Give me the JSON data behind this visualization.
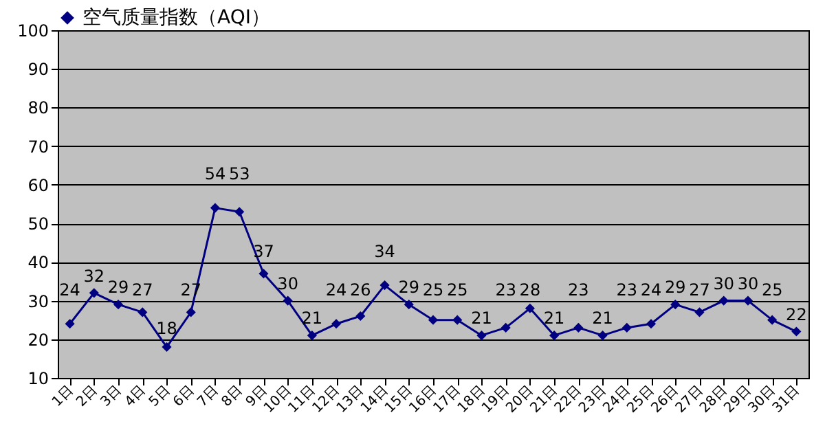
{
  "chart_data": {
    "type": "line",
    "categories": [
      "1日",
      "2日",
      "3日",
      "4日",
      "5日",
      "6日",
      "7日",
      "8日",
      "9日",
      "10日",
      "11日",
      "12日",
      "13日",
      "14日",
      "15日",
      "16日",
      "17日",
      "18日",
      "19日",
      "20日",
      "21日",
      "22日",
      "23日",
      "24日",
      "25日",
      "26日",
      "27日",
      "28日",
      "29日",
      "30日",
      "31日"
    ],
    "series": [
      {
        "name": "空气质量指数（AQI）",
        "color": "#000080",
        "values": [
          24,
          32,
          29,
          27,
          18,
          27,
          54,
          53,
          37,
          30,
          21,
          24,
          26,
          34,
          29,
          25,
          25,
          21,
          23,
          28,
          21,
          23,
          21,
          23,
          24,
          29,
          27,
          30,
          30,
          25,
          22
        ]
      }
    ],
    "ylim": [
      10,
      100
    ],
    "yticks": [
      10,
      20,
      30,
      40,
      50,
      60,
      70,
      80,
      90,
      100
    ],
    "grid": "y",
    "legend": "top",
    "marker": "diamond",
    "line_style": "solid",
    "data_labels": true
  }
}
